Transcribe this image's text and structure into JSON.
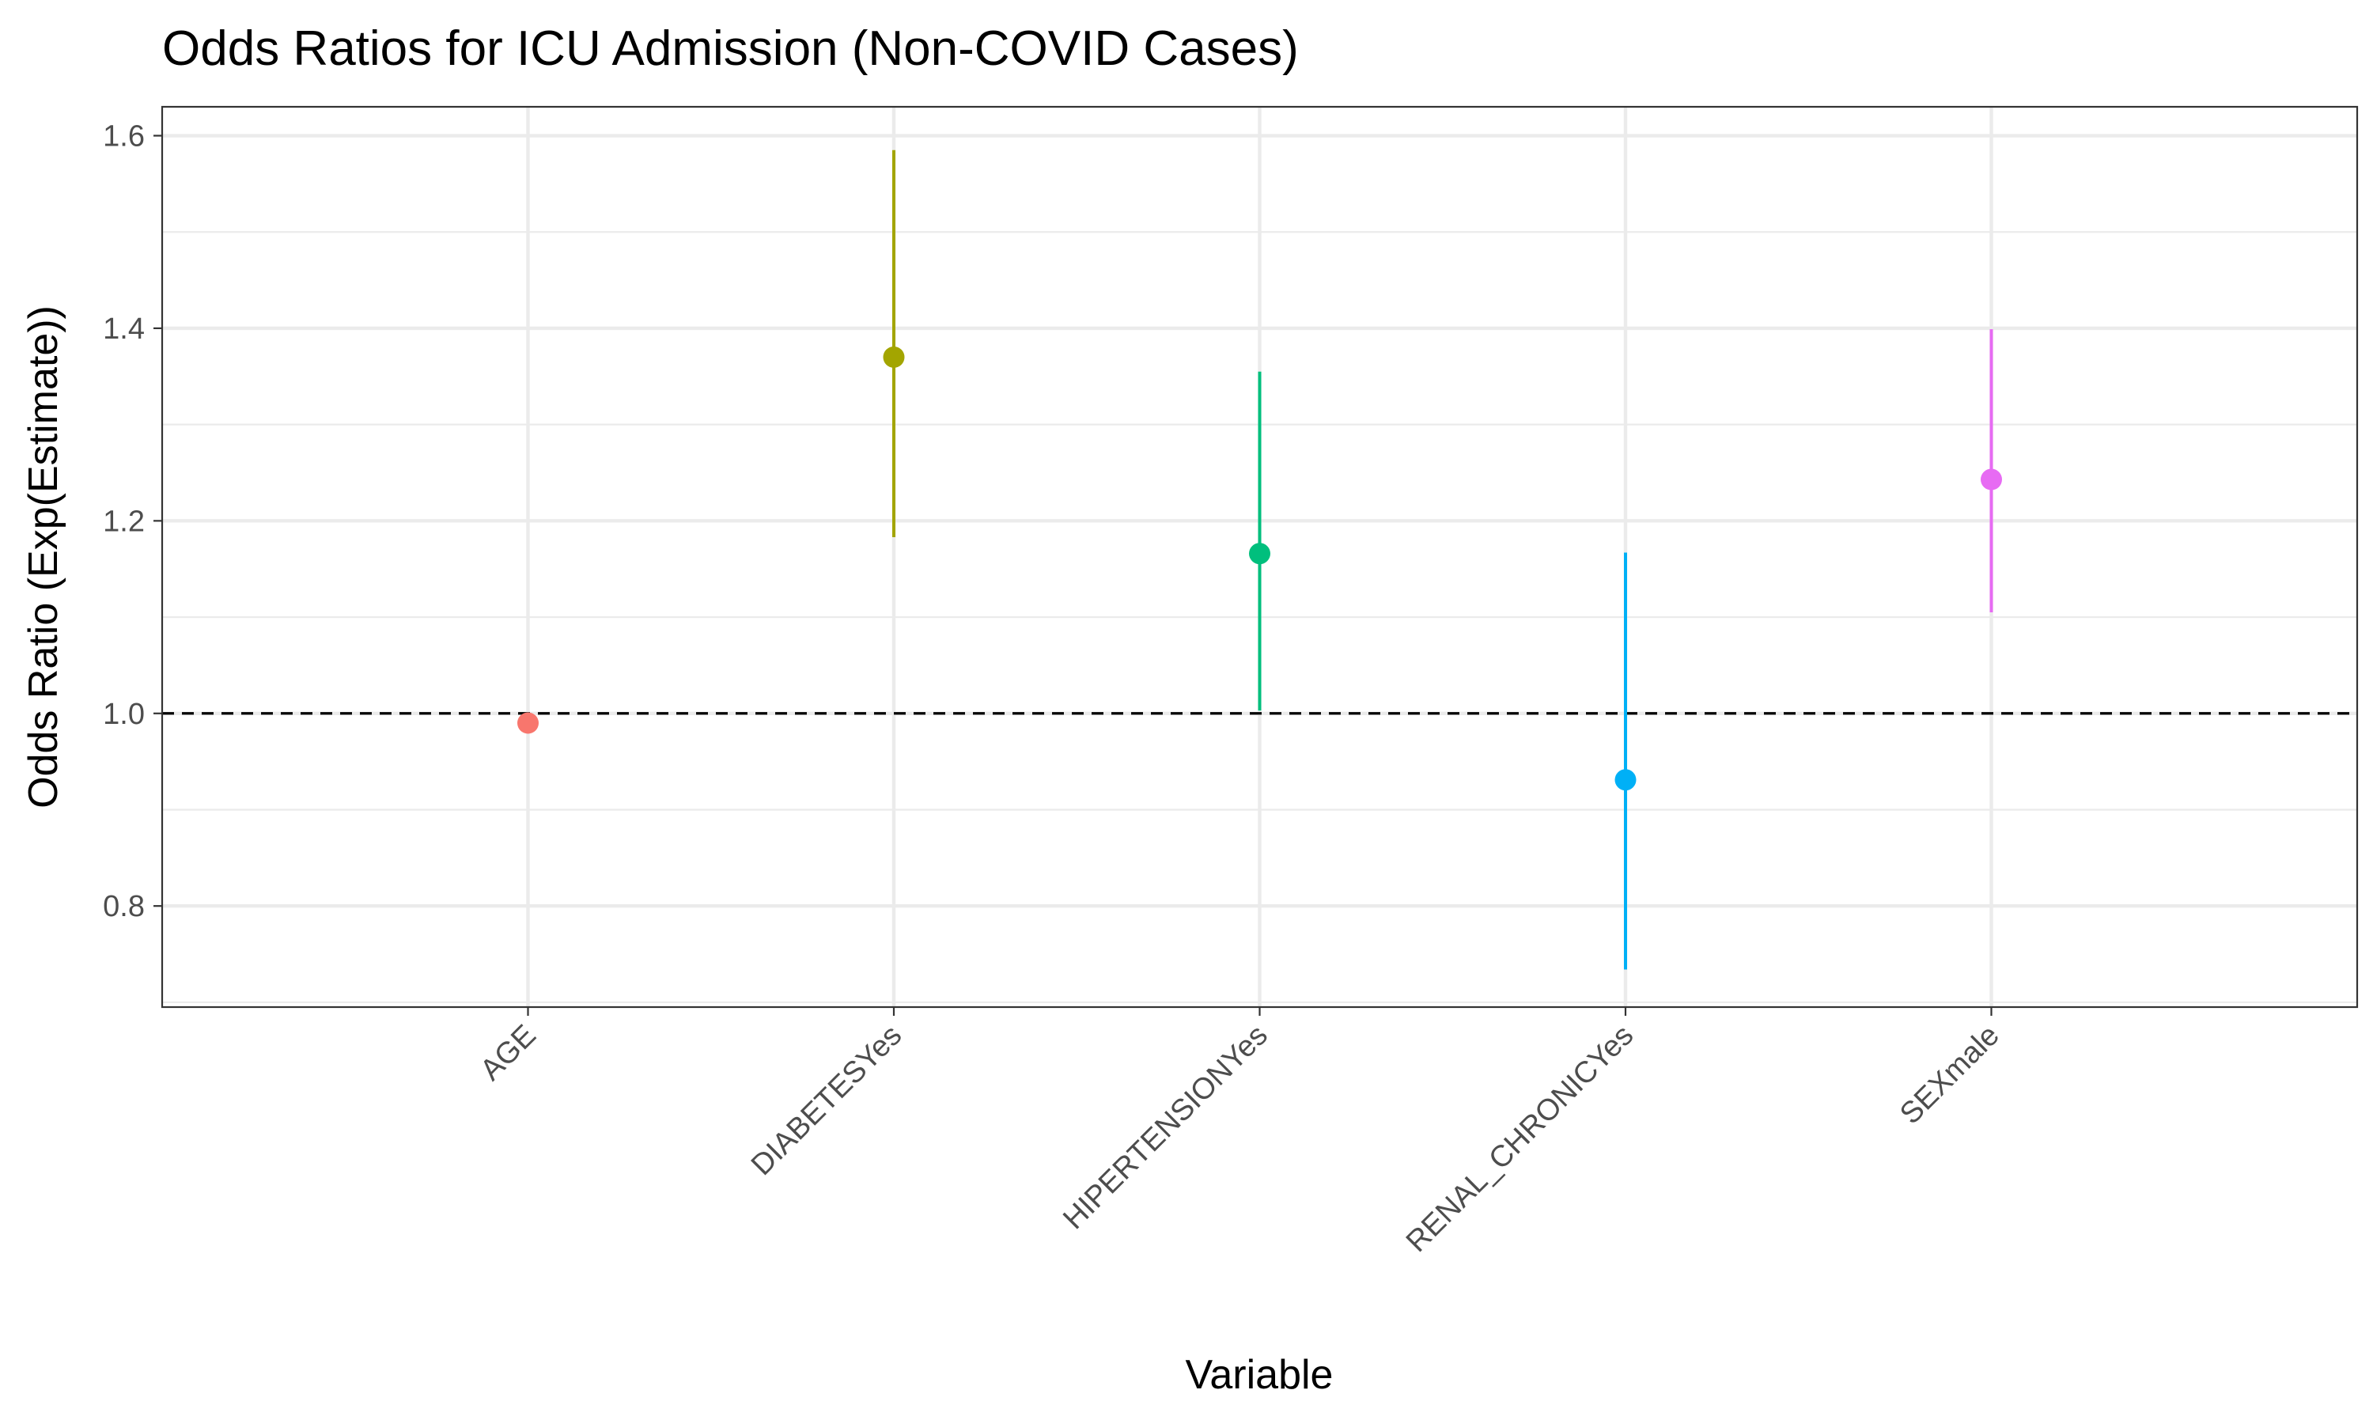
{
  "chart_data": {
    "type": "scatter",
    "title": "Odds Ratios for ICU Admission (Non-COVID Cases)",
    "xlabel": "Variable",
    "ylabel": "Odds Ratio (Exp(Estimate))",
    "categories": [
      "AGE",
      "DIABETESYes",
      "HIPERTENSIONYes",
      "RENAL_CHRONICYes",
      "SEXmale"
    ],
    "series": [
      {
        "values": [
          0.99,
          1.37,
          1.166,
          0.931,
          1.243
        ],
        "ci_lower": [
          0.99,
          1.183,
          1.003,
          0.734,
          1.105
        ],
        "ci_upper": [
          0.99,
          1.585,
          1.355,
          1.167,
          1.399
        ],
        "colors": [
          "#F8766D",
          "#A3A500",
          "#00BF7D",
          "#00B0F6",
          "#E76BF3"
        ]
      }
    ],
    "ylim": [
      0.695,
      1.63
    ],
    "yticks": [
      0.8,
      1.0,
      1.2,
      1.4,
      1.6
    ],
    "ytick_labels": [
      "0.8",
      "1.0",
      "1.2",
      "1.4",
      "1.6"
    ],
    "reference_line": 1.0,
    "grid": true,
    "legend": "none"
  }
}
